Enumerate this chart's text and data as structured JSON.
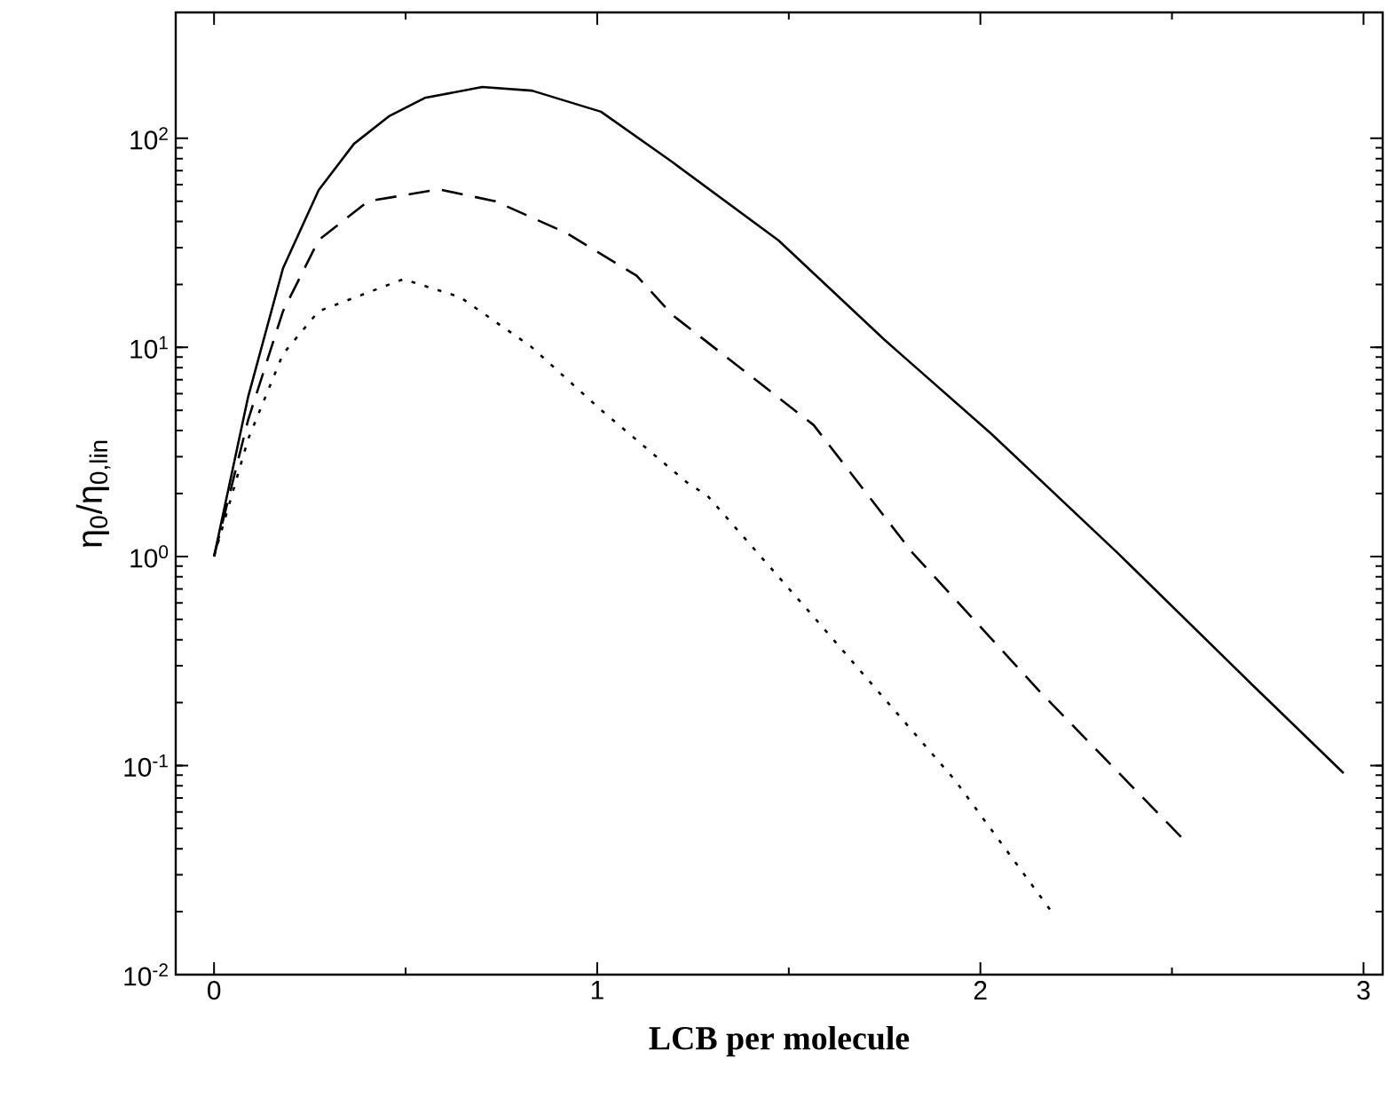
{
  "chart_data": {
    "type": "line",
    "xlabel": "**LCB per molecule**",
    "ylabel": "η$_{0}$/η$_{0,lin}$",
    "xlim": [
      -0.1,
      3.05
    ],
    "ylim": [
      0.01,
      400
    ],
    "log": "y",
    "xticks": [
      0,
      1,
      2,
      3
    ],
    "yticks": [
      {
        "value": 0.01,
        "label": "10$^{-2}$"
      },
      {
        "value": 0.1,
        "label": "10$^{-1}$"
      },
      {
        "value": 1,
        "label": "10$^{0}$"
      },
      {
        "value": 10,
        "label": "10$^{1}$"
      },
      {
        "value": 100,
        "label": "10$^{2}$"
      }
    ],
    "marker": "none",
    "series": [
      {
        "color": "#000000",
        "line_style": "solid",
        "x": [
          0,
          0.089,
          0.18,
          0.273,
          0.365,
          0.458,
          0.55,
          0.7,
          0.83,
          1.01,
          1.196,
          1.473,
          1.749,
          2.026,
          2.358,
          2.709,
          2.948
        ],
        "values": [
          1,
          5.8,
          23.9,
          56.5,
          94,
          128,
          156,
          176,
          169,
          134,
          77,
          32.5,
          10.9,
          3.9,
          1.04,
          0.244,
          0.092
        ]
      },
      {
        "color": "#000000",
        "line_style": "dashed",
        "x": [
          0,
          0.089,
          0.18,
          0.273,
          0.402,
          0.587,
          0.734,
          0.919,
          1.103,
          1.196,
          1.565,
          1.823,
          2.155,
          2.524
        ],
        "values": [
          1,
          4.5,
          14.9,
          32.6,
          50,
          57,
          50,
          35.3,
          22,
          14.3,
          4.25,
          1.04,
          0.226,
          0.0455
        ]
      },
      {
        "color": "#000000",
        "line_style": "dotted",
        "x": [
          0,
          0.089,
          0.18,
          0.273,
          0.494,
          0.642,
          0.827,
          1.011,
          1.233,
          1.288,
          1.565,
          1.934,
          2.193
        ],
        "values": [
          1,
          3.64,
          9.3,
          14.9,
          21.2,
          17.4,
          10.1,
          5.0,
          2.27,
          1.95,
          0.514,
          0.085,
          0.0192
        ]
      }
    ]
  }
}
